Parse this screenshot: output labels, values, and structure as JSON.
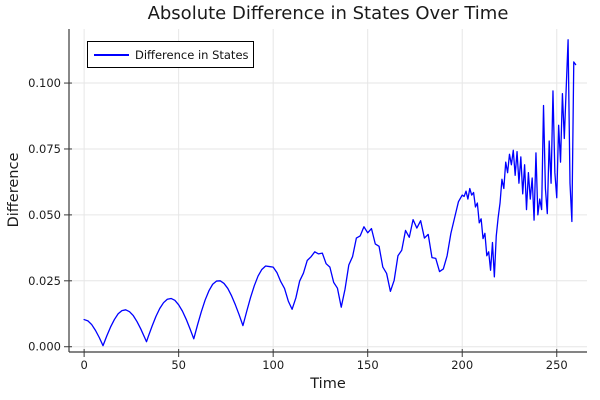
{
  "chart_data": {
    "type": "line",
    "title": "Absolute Difference in States Over Time",
    "xlabel": "Time",
    "ylabel": "Difference",
    "legend": {
      "label": "Difference in States",
      "position": "top-left"
    },
    "grid": true,
    "xlim": [
      -8,
      266
    ],
    "ylim": [
      -0.002,
      0.1205
    ],
    "xticks": {
      "values": [
        0,
        50,
        100,
        150,
        200,
        250
      ],
      "labels": [
        "0",
        "50",
        "100",
        "150",
        "200",
        "250"
      ]
    },
    "yticks": {
      "values": [
        0.0,
        0.025,
        0.05,
        0.075,
        0.1
      ],
      "labels": [
        "0.000",
        "0.025",
        "0.050",
        "0.075",
        "0.100"
      ]
    },
    "colors": {
      "line": "#0000ff",
      "grid": "#e6e6e6",
      "axis": "#3a3a3a",
      "tick_label": "#1c1c1c"
    },
    "series_name": "Difference in States",
    "points": [
      [
        0,
        0.0103
      ],
      [
        2,
        0.0098
      ],
      [
        4,
        0.0084
      ],
      [
        6,
        0.0062
      ],
      [
        8,
        0.0035
      ],
      [
        10,
        0.0004
      ],
      [
        12,
        0.0041
      ],
      [
        14,
        0.0075
      ],
      [
        16,
        0.0103
      ],
      [
        18,
        0.0125
      ],
      [
        20,
        0.0137
      ],
      [
        22,
        0.014
      ],
      [
        24,
        0.0133
      ],
      [
        26,
        0.0118
      ],
      [
        28,
        0.0095
      ],
      [
        30,
        0.0067
      ],
      [
        32,
        0.0035
      ],
      [
        33,
        0.0019
      ],
      [
        34,
        0.004
      ],
      [
        36,
        0.0079
      ],
      [
        38,
        0.0115
      ],
      [
        40,
        0.0145
      ],
      [
        42,
        0.0167
      ],
      [
        44,
        0.018
      ],
      [
        46,
        0.0183
      ],
      [
        48,
        0.0176
      ],
      [
        50,
        0.0159
      ],
      [
        52,
        0.0135
      ],
      [
        54,
        0.0104
      ],
      [
        56,
        0.0068
      ],
      [
        58,
        0.003
      ],
      [
        60,
        0.0083
      ],
      [
        62,
        0.0133
      ],
      [
        64,
        0.0177
      ],
      [
        66,
        0.0212
      ],
      [
        68,
        0.0237
      ],
      [
        70,
        0.0249
      ],
      [
        72,
        0.025
      ],
      [
        74,
        0.024
      ],
      [
        76,
        0.0221
      ],
      [
        78,
        0.0193
      ],
      [
        80,
        0.0159
      ],
      [
        82,
        0.0121
      ],
      [
        84,
        0.008
      ],
      [
        86,
        0.0134
      ],
      [
        88,
        0.0186
      ],
      [
        90,
        0.0231
      ],
      [
        92,
        0.0268
      ],
      [
        94,
        0.0293
      ],
      [
        96,
        0.0306
      ],
      [
        98,
        0.0304
      ],
      [
        100,
        0.0302
      ],
      [
        102,
        0.0281
      ],
      [
        104,
        0.0247
      ],
      [
        106,
        0.0221
      ],
      [
        108,
        0.0173
      ],
      [
        110,
        0.0142
      ],
      [
        112,
        0.0185
      ],
      [
        114,
        0.0249
      ],
      [
        116,
        0.0279
      ],
      [
        118,
        0.0327
      ],
      [
        120,
        0.0341
      ],
      [
        122,
        0.036
      ],
      [
        124,
        0.0352
      ],
      [
        126,
        0.0355
      ],
      [
        128,
        0.0315
      ],
      [
        130,
        0.0302
      ],
      [
        132,
        0.0244
      ],
      [
        134,
        0.0222
      ],
      [
        136,
        0.015
      ],
      [
        138,
        0.0218
      ],
      [
        140,
        0.031
      ],
      [
        142,
        0.0342
      ],
      [
        144,
        0.0412
      ],
      [
        146,
        0.042
      ],
      [
        148,
        0.0455
      ],
      [
        150,
        0.0432
      ],
      [
        152,
        0.0448
      ],
      [
        154,
        0.039
      ],
      [
        156,
        0.0381
      ],
      [
        158,
        0.0302
      ],
      [
        160,
        0.0278
      ],
      [
        162,
        0.021
      ],
      [
        164,
        0.0252
      ],
      [
        166,
        0.0345
      ],
      [
        168,
        0.0366
      ],
      [
        170,
        0.0441
      ],
      [
        172,
        0.0415
      ],
      [
        174,
        0.0482
      ],
      [
        176,
        0.045
      ],
      [
        178,
        0.0478
      ],
      [
        180,
        0.0412
      ],
      [
        182,
        0.0426
      ],
      [
        184,
        0.0338
      ],
      [
        186,
        0.0335
      ],
      [
        188,
        0.0285
      ],
      [
        190,
        0.0295
      ],
      [
        192,
        0.0345
      ],
      [
        194,
        0.043
      ],
      [
        196,
        0.049
      ],
      [
        198,
        0.055
      ],
      [
        200,
        0.0575
      ],
      [
        201,
        0.057
      ],
      [
        202,
        0.059
      ],
      [
        203,
        0.056
      ],
      [
        204,
        0.06
      ],
      [
        205,
        0.0575
      ],
      [
        206,
        0.0585
      ],
      [
        207,
        0.053
      ],
      [
        208,
        0.0545
      ],
      [
        209,
        0.047
      ],
      [
        210,
        0.0485
      ],
      [
        211,
        0.041
      ],
      [
        212,
        0.043
      ],
      [
        213,
        0.0345
      ],
      [
        214,
        0.036
      ],
      [
        215,
        0.029
      ],
      [
        216,
        0.0395
      ],
      [
        217,
        0.0265
      ],
      [
        218,
        0.042
      ],
      [
        219,
        0.049
      ],
      [
        220,
        0.0545
      ],
      [
        221,
        0.0635
      ],
      [
        222,
        0.06
      ],
      [
        223,
        0.07
      ],
      [
        224,
        0.066
      ],
      [
        225,
        0.073
      ],
      [
        226,
        0.069
      ],
      [
        227,
        0.0745
      ],
      [
        228,
        0.065
      ],
      [
        229,
        0.074
      ],
      [
        230,
        0.062
      ],
      [
        231,
        0.072
      ],
      [
        232,
        0.058
      ],
      [
        233,
        0.069
      ],
      [
        234,
        0.052
      ],
      [
        235,
        0.066
      ],
      [
        236,
        0.056
      ],
      [
        237,
        0.064
      ],
      [
        238,
        0.048
      ],
      [
        239,
        0.0735
      ],
      [
        240,
        0.05
      ],
      [
        241,
        0.056
      ],
      [
        242,
        0.052
      ],
      [
        243,
        0.0915
      ],
      [
        244,
        0.06
      ],
      [
        245,
        0.0505
      ],
      [
        246,
        0.078
      ],
      [
        247,
        0.062
      ],
      [
        248,
        0.097
      ],
      [
        249,
        0.066
      ],
      [
        250,
        0.0565
      ],
      [
        251,
        0.084
      ],
      [
        252,
        0.07
      ],
      [
        253,
        0.096
      ],
      [
        254,
        0.079
      ],
      [
        255,
        0.098
      ],
      [
        256,
        0.1164
      ],
      [
        257,
        0.062
      ],
      [
        258,
        0.0475
      ],
      [
        259,
        0.108
      ],
      [
        260,
        0.107
      ]
    ]
  }
}
